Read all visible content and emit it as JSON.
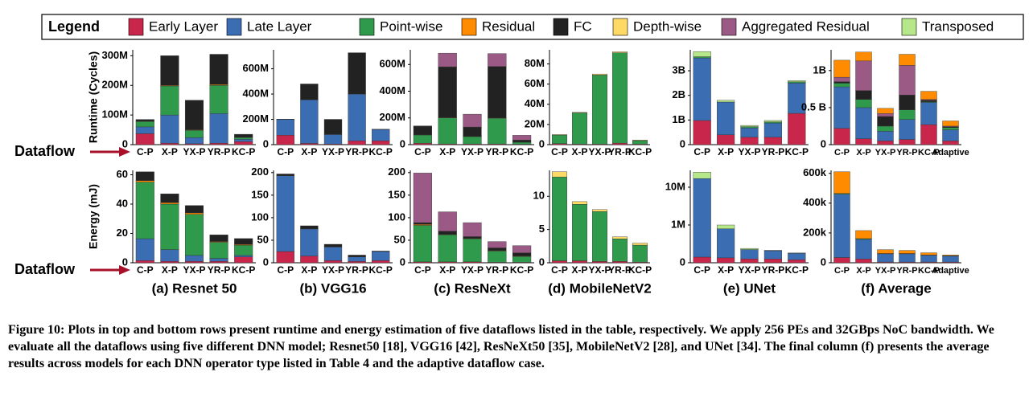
{
  "legend": {
    "title": "Legend",
    "items": [
      {
        "name": "Early Layer",
        "color": "#c8264a"
      },
      {
        "name": "Late Layer",
        "color": "#3b6db3"
      },
      {
        "name": "Point-wise",
        "color": "#2f9a4c"
      },
      {
        "name": "Residual",
        "color": "#ff8c00"
      },
      {
        "name": "FC",
        "color": "#222222"
      },
      {
        "name": "Depth-wise",
        "color": "#ffd966"
      },
      {
        "name": "Aggregated Residual",
        "color": "#9b5a85"
      },
      {
        "name": "Transposed",
        "color": "#b6e78a"
      }
    ]
  },
  "chart_data": [
    {
      "type": "bar",
      "stacked": true,
      "ylabel": "Runtime (Cycles)",
      "annotation": "Dataflow",
      "categories": [
        "C-P",
        "X-P",
        "YX-P",
        "YR-P",
        "KC-P"
      ],
      "series": [
        {
          "name": "Early Layer",
          "values": [
            37000000.0,
            5000000.0,
            3000000.0,
            5000000.0,
            10000000.0
          ]
        },
        {
          "name": "Late Layer",
          "values": [
            23000000.0,
            95000000.0,
            21000000.0,
            100000000.0,
            8000000.0
          ]
        },
        {
          "name": "Point-wise",
          "values": [
            18000000.0,
            98000000.0,
            24000000.0,
            95000000.0,
            6000000.0
          ]
        },
        {
          "name": "Residual",
          "values": [
            1000000.0,
            2000000.0,
            2000000.0,
            3000000.0,
            1000000.0
          ]
        },
        {
          "name": "FC",
          "values": [
            6000000.0,
            100000000.0,
            100000000.0,
            102000000.0,
            10000000.0
          ]
        }
      ],
      "ylim": [
        0,
        320000000.0
      ],
      "yticks": [
        0,
        {
          "value": 100000000.0,
          "label": "100M"
        },
        {
          "value": 200000000.0,
          "label": "200M"
        },
        {
          "value": 300000000.0,
          "label": "300M"
        }
      ]
    },
    {
      "type": "bar",
      "stacked": true,
      "ylabel": "Energy (mJ)",
      "annotation": "Dataflow",
      "xlabel": "(a) Resnet 50",
      "categories": [
        "C-P",
        "X-P",
        "YX-P",
        "YR-P",
        "KC-P"
      ],
      "series": [
        {
          "name": "Early Layer",
          "values": [
            1.5,
            1,
            1,
            1,
            4
          ]
        },
        {
          "name": "Late Layer",
          "values": [
            14.9,
            8,
            4,
            2,
            1
          ]
        },
        {
          "name": "Point-wise",
          "values": [
            38.6,
            31,
            28,
            11,
            7
          ]
        },
        {
          "name": "Residual",
          "values": [
            1,
            1,
            1,
            0.5,
            0.5
          ]
        },
        {
          "name": "FC",
          "values": [
            6,
            6,
            5,
            4.5,
            4
          ]
        }
      ],
      "ylim": [
        0,
        63
      ],
      "yticks": [
        0,
        20,
        40,
        60
      ]
    },
    {
      "type": "bar",
      "stacked": true,
      "categories": [
        "C-P",
        "X-P",
        "YX-P",
        "YR-P",
        "KC-P"
      ],
      "series": [
        {
          "name": "Early Layer",
          "values": [
            75000000.0,
            10000000.0,
            5000000.0,
            30000000.0,
            30000000.0
          ]
        },
        {
          "name": "Late Layer",
          "values": [
            125000000.0,
            345000000.0,
            75000000.0,
            370000000.0,
            90000000.0
          ]
        },
        {
          "name": "FC",
          "values": [
            2000000.0,
            125000000.0,
            120000000.0,
            327000000.0,
            2000000.0
          ]
        }
      ],
      "ylim": [
        0,
        750000000.0
      ],
      "yticks": [
        0,
        {
          "value": 200000000.0,
          "label": "200M"
        },
        {
          "value": 400000000.0,
          "label": "400M"
        },
        {
          "value": 600000000.0,
          "label": "600M"
        }
      ]
    },
    {
      "type": "bar",
      "stacked": true,
      "xlabel": "(b) VGG16",
      "categories": [
        "C-P",
        "X-P",
        "YX-P",
        "YR-P",
        "KC-P"
      ],
      "series": [
        {
          "name": "Early Layer",
          "values": [
            25,
            15,
            5,
            3,
            5
          ]
        },
        {
          "name": "Late Layer",
          "values": [
            168,
            60,
            30,
            10,
            20
          ]
        },
        {
          "name": "FC",
          "values": [
            4,
            7,
            6,
            4,
            1
          ]
        }
      ],
      "ylim": [
        0,
        205
      ],
      "yticks": [
        0,
        50,
        100,
        150,
        200
      ]
    },
    {
      "type": "bar",
      "stacked": true,
      "categories": [
        "C-P",
        "X-P",
        "YX-P",
        "YR-P",
        "KC-P"
      ],
      "series": [
        {
          "name": "Early Layer",
          "values": [
            10000000.0,
            5000000.0,
            5000000.0,
            5000000.0,
            3000000.0
          ]
        },
        {
          "name": "Point-wise",
          "values": [
            62000000.0,
            195000000.0,
            55000000.0,
            193000000.0,
            15000000.0
          ]
        },
        {
          "name": "Residual",
          "values": [
            2000000.0,
            3000000.0,
            2000000.0,
            2000000.0,
            1000000.0
          ]
        },
        {
          "name": "FC",
          "values": [
            64000000.0,
            380000000.0,
            70000000.0,
            385000000.0,
            15000000.0
          ]
        },
        {
          "name": "Aggregated Residual",
          "values": [
            2000000.0,
            102000000.0,
            96000000.0,
            97000000.0,
            36000000.0
          ]
        }
      ],
      "ylim": [
        0,
        710000000.0
      ],
      "yticks": [
        0,
        {
          "value": 200000000.0,
          "label": "200M"
        },
        {
          "value": 400000000.0,
          "label": "400M"
        },
        {
          "value": 600000000.0,
          "label": "600M"
        }
      ]
    },
    {
      "type": "bar",
      "stacked": true,
      "xlabel": "(c) ResNeXt",
      "categories": [
        "C-P",
        "X-P",
        "YX-P",
        "YR-P",
        "KC-P"
      ],
      "series": [
        {
          "name": "Early Layer",
          "values": [
            2,
            2,
            2,
            1,
            1
          ]
        },
        {
          "name": "Point-wise",
          "values": [
            81,
            60,
            51,
            25,
            13
          ]
        },
        {
          "name": "Residual",
          "values": [
            2,
            1,
            1,
            1,
            1
          ]
        },
        {
          "name": "FC",
          "values": [
            4,
            7,
            4,
            6,
            7
          ]
        },
        {
          "name": "Aggregated Residual",
          "values": [
            110,
            43,
            31,
            14,
            16
          ]
        }
      ],
      "ylim": [
        0,
        205
      ],
      "yticks": [
        0,
        50,
        100,
        150,
        200
      ]
    },
    {
      "type": "bar",
      "stacked": true,
      "categories": [
        "C-P",
        "X-P",
        "YX-P",
        "YR-P",
        "KC-P"
      ],
      "series": [
        {
          "name": "Early Layer",
          "values": [
            1000000.0,
            500000.0,
            500000.0,
            1500000.0,
            500000.0
          ]
        },
        {
          "name": "Point-wise",
          "values": [
            8500000.0,
            31000000.0,
            68500000.0,
            89500000.0,
            3500000.0
          ]
        },
        {
          "name": "Depth-wise",
          "values": [
            500000.0,
            500000.0,
            1000000.0,
            1000000.0,
            500000.0
          ]
        }
      ],
      "ylim": [
        0,
        94000000.0
      ],
      "yticks": [
        0,
        {
          "value": 20000000.0,
          "label": "20M"
        },
        {
          "value": 40000000.0,
          "label": "40M"
        },
        {
          "value": 60000000.0,
          "label": "60M"
        },
        {
          "value": 80000000.0,
          "label": "80M"
        }
      ]
    },
    {
      "type": "bar",
      "stacked": true,
      "xlabel": "(d) MobileNetV2",
      "categories": [
        "C-P",
        "X-P",
        "YX-P",
        "YR-P",
        "KC-P"
      ],
      "series": [
        {
          "name": "Early Layer",
          "values": [
            0.3,
            0.3,
            0.2,
            0.2,
            0.1
          ]
        },
        {
          "name": "Point-wise",
          "values": [
            12.6,
            8.5,
            7.5,
            3.4,
            2.55
          ]
        },
        {
          "name": "Depth-wise",
          "values": [
            0.8,
            0.4,
            0.3,
            0.3,
            0.3
          ]
        }
      ],
      "ylim": [
        0,
        13.9
      ],
      "yticks": [
        0,
        5,
        10
      ]
    },
    {
      "type": "bar",
      "stacked": true,
      "categories": [
        "C-P",
        "X-P",
        "YX-P",
        "YR-P",
        "KC-P"
      ],
      "series": [
        {
          "name": "Early Layer",
          "values": [
            980000000.0,
            400000000.0,
            300000000.0,
            300000000.0,
            1270000000.0
          ]
        },
        {
          "name": "Late Layer",
          "values": [
            2540000000.0,
            1330000000.0,
            380000000.0,
            580000000.0,
            1230000000.0
          ]
        },
        {
          "name": "Point-wise",
          "values": [
            50000000.0,
            0,
            50000000.0,
            40000000.0,
            50000000.0
          ]
        },
        {
          "name": "Transposed",
          "values": [
            210000000.0,
            70000000.0,
            50000000.0,
            60000000.0,
            50000000.0
          ]
        }
      ],
      "ylim": [
        0,
        3850000000.0
      ],
      "yticks": [
        0,
        {
          "value": 1000000000.0,
          "label": "1B"
        },
        {
          "value": 2000000000.0,
          "label": "2B"
        },
        {
          "value": 3000000000.0,
          "label": "3B"
        }
      ]
    },
    {
      "type": "bar",
      "stacked": true,
      "xlabel": "(e) UNet",
      "yscale": "symlog",
      "linthresh": 1000000,
      "categories": [
        "C-P",
        "X-P",
        "YX-P",
        "YR-P",
        "KC-P"
      ],
      "series": [
        {
          "name": "Early Layer",
          "values": [
            150000.0,
            130000.0,
            100000.0,
            100000.0,
            80000.0
          ]
        },
        {
          "name": "Late Layer",
          "values": [
            16850000.0,
            770000.0,
            250000.0,
            220000.0,
            170000.0
          ]
        },
        {
          "name": "Transposed",
          "values": [
            8000000.0,
            100000.0,
            30000.0,
            10000.0,
            10000.0
          ]
        }
      ],
      "ylim": [
        0,
        28000000.0
      ],
      "yticks": [
        0,
        {
          "value": 1000000.0,
          "label": "1M"
        },
        {
          "value": 10000000.0,
          "label": "10M"
        }
      ]
    },
    {
      "type": "bar",
      "stacked": true,
      "categories": [
        "C-P",
        "X-P",
        "YX-P",
        "YR-P",
        "KC-P",
        "Adaptive"
      ],
      "series": [
        {
          "name": "Early Layer",
          "values": [
            220000000.0,
            80000000.0,
            50000000.0,
            70000000.0,
            270000000.0,
            50000000.0
          ]
        },
        {
          "name": "Late Layer",
          "values": [
            560000000.0,
            420000000.0,
            130000000.0,
            270000000.0,
            300000000.0,
            150000000.0
          ]
        },
        {
          "name": "Point-wise",
          "values": [
            50000000.0,
            110000000.0,
            70000000.0,
            130000000.0,
            10000000.0,
            30000000.0
          ]
        },
        {
          "name": "FC",
          "values": [
            20000000.0,
            120000000.0,
            130000000.0,
            200000000.0,
            20000000.0,
            10000000.0
          ]
        },
        {
          "name": "Aggregated Residual",
          "values": [
            60000000.0,
            400000000.0,
            40000000.0,
            400000000.0,
            10000000.0,
            10000000.0
          ]
        },
        {
          "name": "Residual",
          "values": [
            230000000.0,
            120000000.0,
            70000000.0,
            150000000.0,
            110000000.0,
            70000000.0
          ]
        }
      ],
      "ylim": [
        0,
        1280000000.0
      ],
      "yticks": [
        0,
        {
          "value": 500000000.0,
          "label": "0.5 B"
        },
        {
          "value": 1000000000.0,
          "label": "1B"
        }
      ]
    },
    {
      "type": "bar",
      "stacked": true,
      "xlabel": "(f) Average",
      "categories": [
        "C-P",
        "X-P",
        "YX-P",
        "YR-P",
        "KC-P",
        "Adaptive"
      ],
      "series": [
        {
          "name": "Early Layer",
          "values": [
            35000.0,
            25000.0,
            5000.0,
            5000.0,
            5000.0,
            5000.0
          ]
        },
        {
          "name": "Late Layer",
          "values": [
            425000.0,
            132000.0,
            55000.0,
            55000.0,
            45000.0,
            40000.0
          ]
        },
        {
          "name": "Point-wise",
          "values": [
            5000.0,
            5000.0,
            2000.0,
            2000.0,
            2000.0,
            2000.0
          ]
        },
        {
          "name": "Residual",
          "values": [
            146000.0,
            54000.0,
            26000.0,
            21000.0,
            15000.0,
            5000.0
          ]
        }
      ],
      "ylim": [
        0,
        620000.0
      ],
      "yticks": [
        0,
        {
          "value": 200000.0,
          "label": "200k"
        },
        {
          "value": 400000.0,
          "label": "400k"
        },
        {
          "value": 600000.0,
          "label": "600k"
        }
      ]
    }
  ],
  "caption": {
    "label": "Figure 10:",
    "text": "Plots in top and bottom rows present runtime and energy estimation of five dataflows listed in the table, respectively. We apply 256 PEs and 32GBps NoC bandwidth. We evaluate all the dataflows using five different DNN model; Resnet50 [18], VGG16 [42], ResNeXt50 [35], MobileNetV2 [28], and UNet [34]. The final column (f) presents the average results across models for each DNN operator type listed in Table 4 and the adaptive dataflow case."
  }
}
